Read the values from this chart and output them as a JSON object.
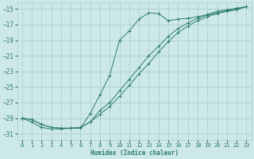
{
  "xlabel": "Humidex (Indice chaleur)",
  "xlim": [
    -0.5,
    23.5
  ],
  "ylim": [
    -31.8,
    -14.2
  ],
  "yticks": [
    -15,
    -17,
    -19,
    -21,
    -23,
    -25,
    -27,
    -29,
    -31
  ],
  "xticks": [
    0,
    1,
    2,
    3,
    4,
    5,
    6,
    7,
    8,
    9,
    10,
    11,
    12,
    13,
    14,
    15,
    16,
    17,
    18,
    19,
    20,
    21,
    22,
    23
  ],
  "bg_color": "#cce8e8",
  "line_color": "#2e7d70",
  "grid_color": "#aacccc",
  "curve_x": [
    0,
    1,
    2,
    3,
    4,
    5,
    6,
    7,
    8,
    9,
    10,
    11,
    12,
    13,
    14,
    15,
    16,
    17,
    18,
    19,
    20,
    21,
    22,
    23
  ],
  "curve_y": [
    -29.0,
    -29.5,
    -30.2,
    -30.4,
    -30.4,
    -30.3,
    -30.3,
    -28.4,
    -26.0,
    -23.5,
    -19.0,
    -17.8,
    -16.3,
    -15.5,
    -15.6,
    -16.5,
    -16.3,
    -16.2,
    -16.0,
    -15.7,
    -15.3,
    -15.1,
    -14.9,
    -14.7
  ],
  "diag1_x": [
    0,
    1,
    2,
    3,
    4,
    5,
    6,
    7,
    8,
    9,
    10,
    11,
    12,
    13,
    14,
    15,
    16,
    17,
    18,
    19,
    20,
    21,
    22,
    23
  ],
  "diag1_y": [
    -29.0,
    -29.2,
    -29.8,
    -30.2,
    -30.3,
    -30.3,
    -30.2,
    -29.5,
    -28.0,
    -27.0,
    -25.5,
    -24.0,
    -22.5,
    -21.0,
    -19.8,
    -18.5,
    -17.5,
    -16.8,
    -16.2,
    -15.8,
    -15.5,
    -15.2,
    -15.0,
    -14.7
  ],
  "diag2_x": [
    0,
    1,
    2,
    3,
    4,
    5,
    6,
    7,
    8,
    9,
    10,
    11,
    12,
    13,
    14,
    15,
    16,
    17,
    18,
    19,
    20,
    21,
    22,
    23
  ],
  "diag2_y": [
    -29.0,
    -29.2,
    -29.8,
    -30.2,
    -30.3,
    -30.3,
    -30.2,
    -29.5,
    -28.5,
    -27.5,
    -26.2,
    -24.8,
    -23.3,
    -22.0,
    -20.5,
    -19.2,
    -18.0,
    -17.2,
    -16.5,
    -16.0,
    -15.6,
    -15.3,
    -15.1,
    -14.7
  ]
}
